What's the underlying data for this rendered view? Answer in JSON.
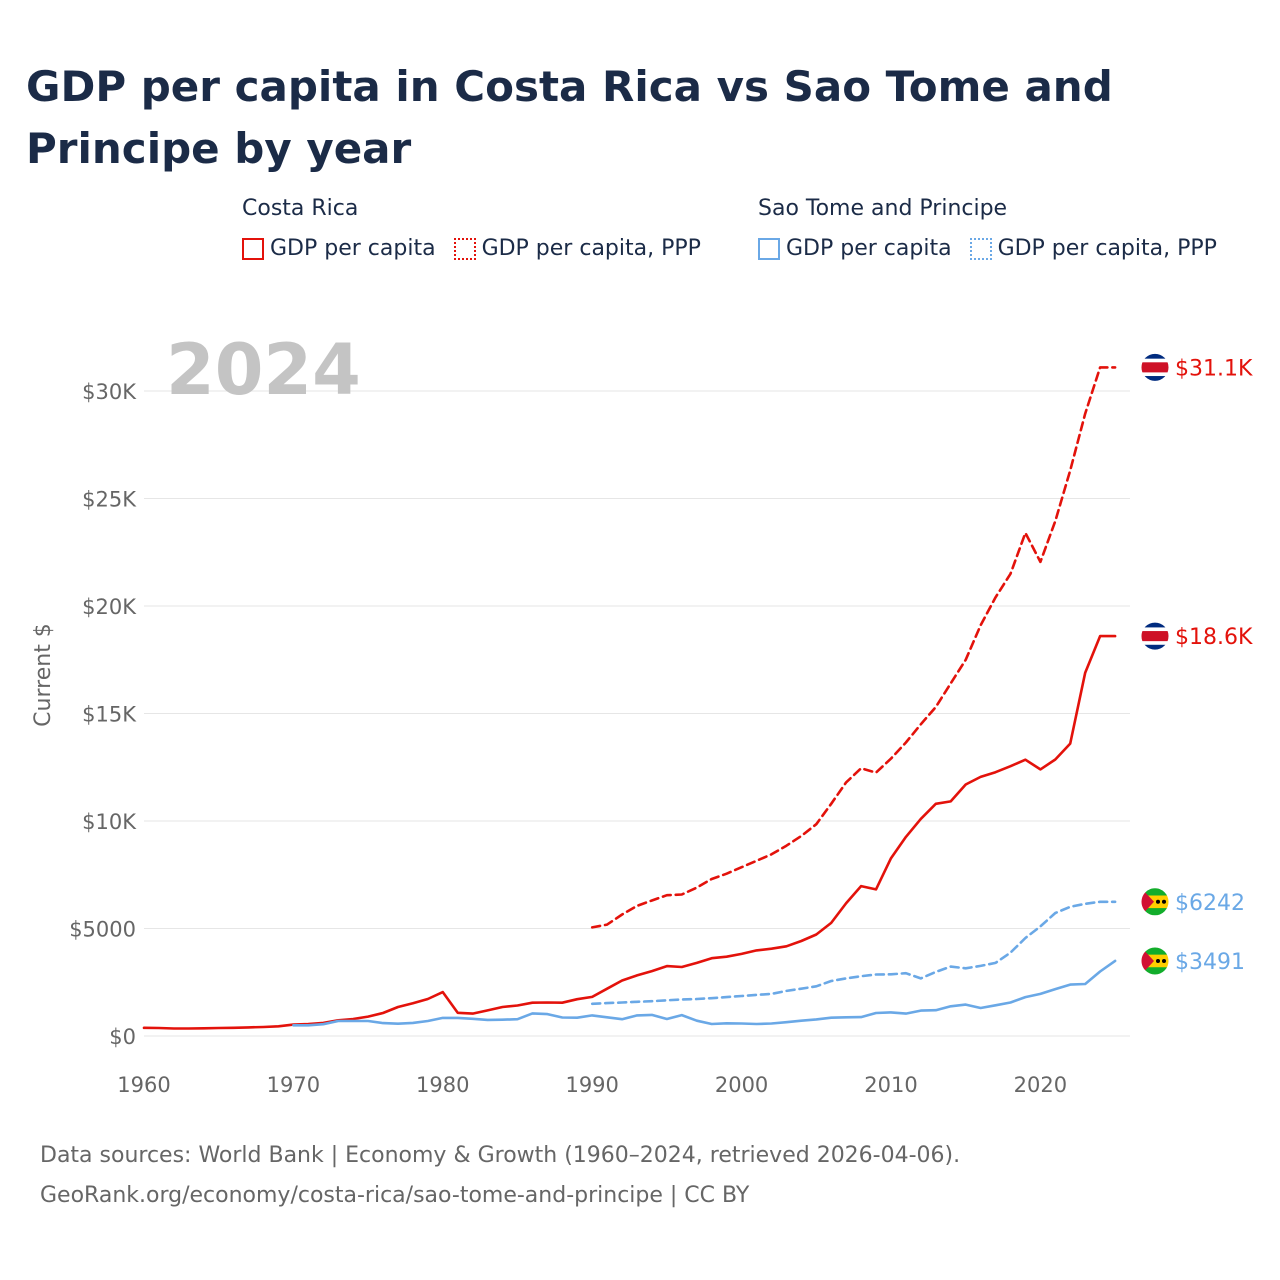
{
  "title": "GDP per capita in Costa Rica vs Sao Tome and Principe by year",
  "legend": {
    "groups": [
      {
        "name": "Costa Rica",
        "items": [
          "GDP per capita",
          "GDP per capita, PPP"
        ]
      },
      {
        "name": "Sao Tome and Principe",
        "items": [
          "GDP per capita",
          "GDP per capita, PPP"
        ]
      }
    ]
  },
  "year_watermark": "2024",
  "footer": {
    "line1": "Data sources: World Bank | Economy & Growth (1960–2024, retrieved 2026-04-06).",
    "line2": "GeoRank.org/economy/costa-rica/sao-tome-and-principe | CC BY"
  },
  "colors": {
    "costa_rica": "#e3120b",
    "sao_tome": "#6aa8e6",
    "grid": "#e6e6e6",
    "axis_text": "#666666",
    "watermark": "#c4c4c4"
  },
  "chart_data": {
    "type": "line",
    "title": "GDP per capita in Costa Rica vs Sao Tome and Principe by year",
    "xlabel": "",
    "ylabel": "Current $",
    "xlim": [
      1960,
      2026
    ],
    "ylim": [
      0,
      32000
    ],
    "x_ticks": [
      1960,
      1970,
      1980,
      1990,
      2000,
      2010,
      2020
    ],
    "x_tick_labels": [
      "1960",
      "1970",
      "1980",
      "1990",
      "2000",
      "2010",
      "2020"
    ],
    "y_ticks": [
      0,
      5000,
      10000,
      15000,
      20000,
      25000,
      30000
    ],
    "y_tick_labels": [
      "$0",
      "$5000",
      "$10K",
      "$15K",
      "$20K",
      "$25K",
      "$30K"
    ],
    "grid": true,
    "series": [
      {
        "name": "Costa Rica — GDP per capita",
        "country": "Costa Rica",
        "style": "solid",
        "color": "#e3120b",
        "end_label": "$18.6K",
        "points": [
          [
            1960,
            380
          ],
          [
            1961,
            370
          ],
          [
            1962,
            350
          ],
          [
            1963,
            350
          ],
          [
            1964,
            360
          ],
          [
            1965,
            370
          ],
          [
            1966,
            380
          ],
          [
            1967,
            400
          ],
          [
            1968,
            420
          ],
          [
            1969,
            450
          ],
          [
            1970,
            530
          ],
          [
            1971,
            560
          ],
          [
            1972,
            610
          ],
          [
            1973,
            730
          ],
          [
            1974,
            790
          ],
          [
            1975,
            900
          ],
          [
            1976,
            1070
          ],
          [
            1977,
            1350
          ],
          [
            1978,
            1520
          ],
          [
            1979,
            1720
          ],
          [
            1980,
            2040
          ],
          [
            1981,
            1080
          ],
          [
            1982,
            1040
          ],
          [
            1983,
            1190
          ],
          [
            1984,
            1350
          ],
          [
            1985,
            1420
          ],
          [
            1986,
            1550
          ],
          [
            1987,
            1560
          ],
          [
            1988,
            1550
          ],
          [
            1989,
            1710
          ],
          [
            1990,
            1820
          ],
          [
            1991,
            2200
          ],
          [
            1992,
            2580
          ],
          [
            1993,
            2820
          ],
          [
            1994,
            3020
          ],
          [
            1995,
            3250
          ],
          [
            1996,
            3210
          ],
          [
            1997,
            3400
          ],
          [
            1998,
            3620
          ],
          [
            1999,
            3690
          ],
          [
            2000,
            3820
          ],
          [
            2001,
            3980
          ],
          [
            2002,
            4060
          ],
          [
            2003,
            4170
          ],
          [
            2004,
            4420
          ],
          [
            2005,
            4720
          ],
          [
            2006,
            5260
          ],
          [
            2007,
            6180
          ],
          [
            2008,
            6970
          ],
          [
            2009,
            6820
          ],
          [
            2010,
            8270
          ],
          [
            2011,
            9260
          ],
          [
            2012,
            10100
          ],
          [
            2013,
            10800
          ],
          [
            2014,
            10910
          ],
          [
            2015,
            11700
          ],
          [
            2016,
            12050
          ],
          [
            2017,
            12270
          ],
          [
            2018,
            12550
          ],
          [
            2019,
            12850
          ],
          [
            2020,
            12400
          ],
          [
            2021,
            12860
          ],
          [
            2022,
            13600
          ],
          [
            2023,
            16900
          ],
          [
            2024,
            18600
          ],
          [
            2025,
            18600
          ]
        ]
      },
      {
        "name": "Costa Rica — GDP per capita, PPP",
        "country": "Costa Rica",
        "style": "dashed",
        "color": "#e3120b",
        "end_label": "$31.1K",
        "points": [
          [
            1990,
            5050
          ],
          [
            1991,
            5180
          ],
          [
            1992,
            5650
          ],
          [
            1993,
            6050
          ],
          [
            1994,
            6300
          ],
          [
            1995,
            6550
          ],
          [
            1996,
            6580
          ],
          [
            1997,
            6900
          ],
          [
            1998,
            7300
          ],
          [
            1999,
            7550
          ],
          [
            2000,
            7850
          ],
          [
            2001,
            8150
          ],
          [
            2002,
            8450
          ],
          [
            2003,
            8850
          ],
          [
            2004,
            9300
          ],
          [
            2005,
            9850
          ],
          [
            2006,
            10800
          ],
          [
            2007,
            11800
          ],
          [
            2008,
            12450
          ],
          [
            2009,
            12250
          ],
          [
            2010,
            12900
          ],
          [
            2011,
            13650
          ],
          [
            2012,
            14500
          ],
          [
            2013,
            15300
          ],
          [
            2014,
            16400
          ],
          [
            2015,
            17500
          ],
          [
            2016,
            19100
          ],
          [
            2017,
            20400
          ],
          [
            2018,
            21500
          ],
          [
            2019,
            23400
          ],
          [
            2020,
            22050
          ],
          [
            2021,
            23950
          ],
          [
            2022,
            26300
          ],
          [
            2023,
            28950
          ],
          [
            2024,
            31100
          ],
          [
            2025,
            31100
          ]
        ]
      },
      {
        "name": "Sao Tome and Principe — GDP per capita",
        "country": "Sao Tome and Principe",
        "style": "solid",
        "color": "#6aa8e6",
        "end_label": "$3491",
        "points": [
          [
            1970,
            500
          ],
          [
            1971,
            500
          ],
          [
            1972,
            550
          ],
          [
            1973,
            700
          ],
          [
            1974,
            700
          ],
          [
            1975,
            700
          ],
          [
            1976,
            600
          ],
          [
            1977,
            570
          ],
          [
            1978,
            610
          ],
          [
            1979,
            700
          ],
          [
            1980,
            840
          ],
          [
            1981,
            840
          ],
          [
            1982,
            800
          ],
          [
            1983,
            750
          ],
          [
            1984,
            760
          ],
          [
            1985,
            780
          ],
          [
            1986,
            1050
          ],
          [
            1987,
            1020
          ],
          [
            1988,
            860
          ],
          [
            1989,
            850
          ],
          [
            1990,
            960
          ],
          [
            1991,
            870
          ],
          [
            1992,
            780
          ],
          [
            1993,
            960
          ],
          [
            1994,
            980
          ],
          [
            1995,
            790
          ],
          [
            1996,
            970
          ],
          [
            1997,
            710
          ],
          [
            1998,
            560
          ],
          [
            1999,
            590
          ],
          [
            2000,
            580
          ],
          [
            2001,
            560
          ],
          [
            2002,
            580
          ],
          [
            2003,
            640
          ],
          [
            2004,
            710
          ],
          [
            2005,
            770
          ],
          [
            2006,
            850
          ],
          [
            2007,
            870
          ],
          [
            2008,
            880
          ],
          [
            2009,
            1070
          ],
          [
            2010,
            1100
          ],
          [
            2011,
            1040
          ],
          [
            2012,
            1180
          ],
          [
            2013,
            1200
          ],
          [
            2014,
            1380
          ],
          [
            2015,
            1460
          ],
          [
            2016,
            1300
          ],
          [
            2017,
            1430
          ],
          [
            2018,
            1560
          ],
          [
            2019,
            1810
          ],
          [
            2020,
            1960
          ],
          [
            2021,
            2180
          ],
          [
            2022,
            2390
          ],
          [
            2023,
            2420
          ],
          [
            2024,
            3000
          ],
          [
            2025,
            3491
          ]
        ]
      },
      {
        "name": "Sao Tome and Principe — GDP per capita, PPP",
        "country": "Sao Tome and Principe",
        "style": "dashed",
        "color": "#6aa8e6",
        "end_label": "$6242",
        "points": [
          [
            1990,
            1500
          ],
          [
            1991,
            1530
          ],
          [
            1992,
            1560
          ],
          [
            1993,
            1590
          ],
          [
            1994,
            1620
          ],
          [
            1995,
            1660
          ],
          [
            1996,
            1700
          ],
          [
            1997,
            1720
          ],
          [
            1998,
            1760
          ],
          [
            1999,
            1810
          ],
          [
            2000,
            1860
          ],
          [
            2001,
            1910
          ],
          [
            2002,
            1960
          ],
          [
            2003,
            2100
          ],
          [
            2004,
            2200
          ],
          [
            2005,
            2310
          ],
          [
            2006,
            2560
          ],
          [
            2007,
            2680
          ],
          [
            2008,
            2780
          ],
          [
            2009,
            2860
          ],
          [
            2010,
            2870
          ],
          [
            2011,
            2920
          ],
          [
            2012,
            2680
          ],
          [
            2013,
            2980
          ],
          [
            2014,
            3230
          ],
          [
            2015,
            3150
          ],
          [
            2016,
            3260
          ],
          [
            2017,
            3400
          ],
          [
            2018,
            3880
          ],
          [
            2019,
            4560
          ],
          [
            2020,
            5100
          ],
          [
            2021,
            5720
          ],
          [
            2022,
            6010
          ],
          [
            2023,
            6150
          ],
          [
            2024,
            6242
          ],
          [
            2025,
            6242
          ]
        ]
      }
    ]
  }
}
